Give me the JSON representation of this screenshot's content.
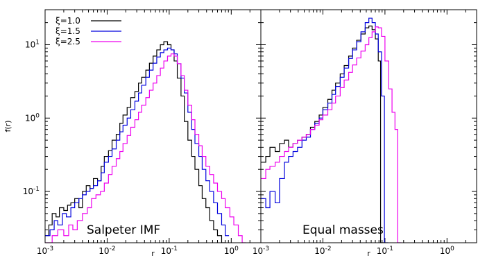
{
  "chart_data": [
    {
      "type": "line",
      "step": true,
      "annotation": "Salpeter IMF",
      "xlabel": "r",
      "ylabel": "f(r)",
      "xscale": "log",
      "yscale": "log",
      "xlim": [
        0.001,
        3.0
      ],
      "ylim": [
        0.02,
        30
      ],
      "x_ticks": [
        {
          "value": 0.001,
          "base": "10",
          "exp": "-3"
        },
        {
          "value": 0.01,
          "base": "10",
          "exp": "-2"
        },
        {
          "value": 0.1,
          "base": "10",
          "exp": "-1"
        },
        {
          "value": 1,
          "base": "10",
          "exp": "0"
        }
      ],
      "y_ticks": [
        {
          "value": 0.1,
          "base": "10",
          "exp": "-1"
        },
        {
          "value": 1,
          "base": "10",
          "exp": "0"
        },
        {
          "value": 10,
          "base": "10",
          "exp": "1"
        }
      ],
      "legend_position": "top-left",
      "series": [
        {
          "name": "ξ=1.0",
          "color": "#000000",
          "x": [
            0.001,
            0.00115,
            0.0013,
            0.0015,
            0.0017,
            0.002,
            0.0023,
            0.0026,
            0.003,
            0.0035,
            0.004,
            0.0046,
            0.0053,
            0.006,
            0.007,
            0.008,
            0.009,
            0.0105,
            0.012,
            0.014,
            0.016,
            0.018,
            0.021,
            0.024,
            0.028,
            0.032,
            0.036,
            0.042,
            0.048,
            0.055,
            0.063,
            0.072,
            0.082,
            0.094,
            0.107,
            0.12,
            0.135,
            0.155,
            0.175,
            0.2,
            0.23,
            0.26,
            0.3,
            0.34,
            0.39,
            0.45,
            0.52,
            0.6,
            0.7
          ],
          "y": [
            0.025,
            0.035,
            0.05,
            0.045,
            0.06,
            0.055,
            0.065,
            0.07,
            0.08,
            0.06,
            0.1,
            0.12,
            0.11,
            0.15,
            0.14,
            0.22,
            0.3,
            0.36,
            0.5,
            0.6,
            0.85,
            1.1,
            1.4,
            1.9,
            2.3,
            3.0,
            3.6,
            4.5,
            5.6,
            7.0,
            8.5,
            10.0,
            11.0,
            10.0,
            8.5,
            6.0,
            3.5,
            2.0,
            0.9,
            0.5,
            0.3,
            0.2,
            0.12,
            0.08,
            0.06,
            0.04,
            0.03,
            0.025,
            0.02
          ]
        },
        {
          "name": "ξ=1.5",
          "color": "#0000dd",
          "x": [
            0.001,
            0.0012,
            0.0014,
            0.0016,
            0.0019,
            0.0022,
            0.0026,
            0.003,
            0.0035,
            0.004,
            0.0046,
            0.0053,
            0.006,
            0.007,
            0.008,
            0.009,
            0.0105,
            0.012,
            0.014,
            0.016,
            0.018,
            0.021,
            0.024,
            0.028,
            0.032,
            0.036,
            0.042,
            0.048,
            0.055,
            0.063,
            0.072,
            0.082,
            0.094,
            0.107,
            0.12,
            0.135,
            0.155,
            0.175,
            0.2,
            0.23,
            0.26,
            0.3,
            0.34,
            0.39,
            0.45,
            0.52,
            0.6,
            0.7,
            0.8
          ],
          "y": [
            0.025,
            0.03,
            0.04,
            0.035,
            0.05,
            0.045,
            0.06,
            0.07,
            0.08,
            0.09,
            0.1,
            0.11,
            0.12,
            0.14,
            0.18,
            0.25,
            0.3,
            0.38,
            0.5,
            0.65,
            0.8,
            1.0,
            1.3,
            1.7,
            2.2,
            2.8,
            3.6,
            4.5,
            5.6,
            6.8,
            7.8,
            8.5,
            9.0,
            8.5,
            7.5,
            5.5,
            3.5,
            2.2,
            1.2,
            0.7,
            0.45,
            0.3,
            0.2,
            0.14,
            0.1,
            0.07,
            0.05,
            0.035,
            0.025
          ]
        },
        {
          "name": "ξ=2.5",
          "color": "#ee00ee",
          "x": [
            0.001,
            0.0013,
            0.0016,
            0.002,
            0.0024,
            0.0028,
            0.0033,
            0.004,
            0.0048,
            0.0056,
            0.0066,
            0.0078,
            0.009,
            0.0105,
            0.012,
            0.014,
            0.016,
            0.018,
            0.021,
            0.024,
            0.028,
            0.032,
            0.036,
            0.042,
            0.048,
            0.055,
            0.063,
            0.072,
            0.082,
            0.094,
            0.107,
            0.12,
            0.135,
            0.155,
            0.175,
            0.2,
            0.23,
            0.26,
            0.3,
            0.34,
            0.39,
            0.45,
            0.52,
            0.6,
            0.7,
            0.8,
            0.95,
            1.1,
            1.3,
            1.5
          ],
          "y": [
            0.02,
            0.025,
            0.03,
            0.025,
            0.035,
            0.03,
            0.04,
            0.05,
            0.06,
            0.08,
            0.09,
            0.1,
            0.13,
            0.17,
            0.22,
            0.28,
            0.35,
            0.45,
            0.58,
            0.75,
            0.95,
            1.2,
            1.5,
            1.9,
            2.4,
            3.0,
            3.8,
            4.8,
            6.0,
            7.0,
            7.5,
            7.0,
            5.5,
            3.8,
            2.4,
            1.5,
            0.95,
            0.6,
            0.42,
            0.3,
            0.22,
            0.17,
            0.13,
            0.1,
            0.08,
            0.06,
            0.045,
            0.035,
            0.025,
            0.02
          ]
        }
      ]
    },
    {
      "type": "line",
      "step": true,
      "annotation": "Equal masses",
      "xlabel": "r",
      "ylabel": "",
      "xscale": "log",
      "yscale": "log",
      "xlim": [
        0.001,
        3.0
      ],
      "ylim": [
        0.02,
        30
      ],
      "x_ticks": [
        {
          "value": 0.001,
          "base": "10",
          "exp": "-3"
        },
        {
          "value": 0.01,
          "base": "10",
          "exp": "-2"
        },
        {
          "value": 0.1,
          "base": "10",
          "exp": "-1"
        },
        {
          "value": 1,
          "base": "10",
          "exp": "0"
        }
      ],
      "y_ticks": [],
      "series": [
        {
          "name": "ξ=1.0",
          "color": "#000000",
          "x": [
            0.001,
            0.0012,
            0.0014,
            0.0017,
            0.002,
            0.0024,
            0.0028,
            0.0033,
            0.0039,
            0.0046,
            0.0054,
            0.0063,
            0.0074,
            0.0087,
            0.01,
            0.012,
            0.014,
            0.016,
            0.019,
            0.022,
            0.026,
            0.03,
            0.035,
            0.041,
            0.048,
            0.055,
            0.062,
            0.07,
            0.078,
            0.085
          ],
          "y": [
            0.25,
            0.3,
            0.4,
            0.35,
            0.45,
            0.5,
            0.4,
            0.45,
            0.5,
            0.55,
            0.6,
            0.75,
            0.9,
            1.1,
            1.4,
            1.8,
            2.4,
            3.0,
            4.0,
            5.2,
            7.0,
            9.0,
            11.5,
            14.0,
            17.0,
            18.0,
            16.0,
            12.0,
            6.0,
            0.02
          ]
        },
        {
          "name": "ξ=1.5",
          "color": "#0000dd",
          "x": [
            0.001,
            0.0012,
            0.0014,
            0.0017,
            0.002,
            0.0024,
            0.0028,
            0.0033,
            0.0039,
            0.0046,
            0.0054,
            0.0063,
            0.0074,
            0.0087,
            0.01,
            0.012,
            0.014,
            0.016,
            0.019,
            0.022,
            0.026,
            0.03,
            0.035,
            0.041,
            0.048,
            0.055,
            0.062,
            0.07,
            0.078,
            0.088,
            0.098
          ],
          "y": [
            0.08,
            0.06,
            0.1,
            0.07,
            0.15,
            0.25,
            0.3,
            0.35,
            0.4,
            0.5,
            0.55,
            0.7,
            0.85,
            1.0,
            1.3,
            1.6,
            2.1,
            2.7,
            3.6,
            4.8,
            6.5,
            8.5,
            11.0,
            15.0,
            20.0,
            23.0,
            20.0,
            14.0,
            8.0,
            2.0,
            0.02
          ]
        },
        {
          "name": "ξ=2.5",
          "color": "#ee00ee",
          "x": [
            0.001,
            0.0012,
            0.0014,
            0.0017,
            0.002,
            0.0024,
            0.0028,
            0.0033,
            0.0039,
            0.0046,
            0.0054,
            0.0063,
            0.0074,
            0.0087,
            0.01,
            0.012,
            0.014,
            0.016,
            0.019,
            0.022,
            0.026,
            0.03,
            0.035,
            0.041,
            0.048,
            0.055,
            0.062,
            0.07,
            0.078,
            0.088,
            0.1,
            0.115,
            0.13,
            0.145,
            0.16
          ],
          "y": [
            0.15,
            0.2,
            0.22,
            0.25,
            0.3,
            0.35,
            0.4,
            0.45,
            0.5,
            0.55,
            0.6,
            0.7,
            0.8,
            0.95,
            1.1,
            1.3,
            1.6,
            2.0,
            2.6,
            3.3,
            4.2,
            5.3,
            6.6,
            8.2,
            10.0,
            12.5,
            15.0,
            17.5,
            17.0,
            13.0,
            6.0,
            2.5,
            1.2,
            0.7,
            0.02
          ]
        }
      ]
    }
  ]
}
